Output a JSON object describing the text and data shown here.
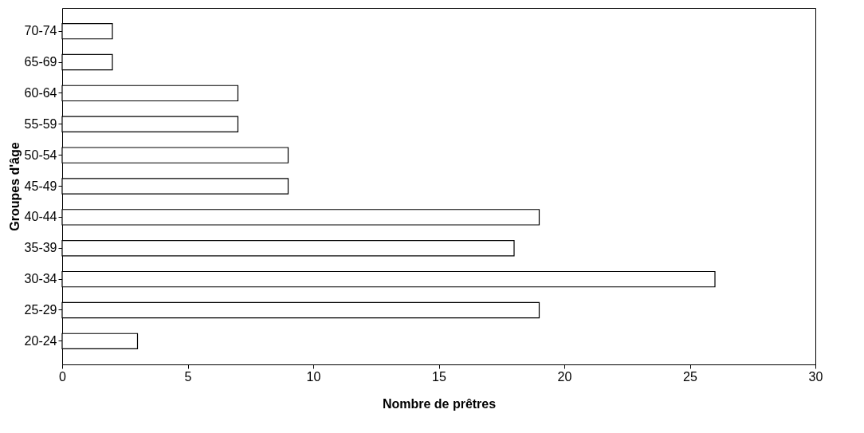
{
  "chart_data": {
    "type": "bar",
    "orientation": "horizontal",
    "xlabel": "Nombre de prêtres",
    "ylabel": "Groupes d'âge",
    "categories": [
      "70-74",
      "65-69",
      "60-64",
      "55-59",
      "50-54",
      "45-49",
      "40-44",
      "35-39",
      "30-34",
      "25-29",
      "20-24"
    ],
    "values": [
      2,
      2,
      7,
      7,
      9,
      9,
      19,
      18,
      26,
      19,
      3
    ],
    "color": "#ffffff",
    "xlim": [
      0,
      30
    ],
    "xticks": [
      0,
      5,
      10,
      15,
      20,
      25,
      30
    ],
    "grid": false
  }
}
